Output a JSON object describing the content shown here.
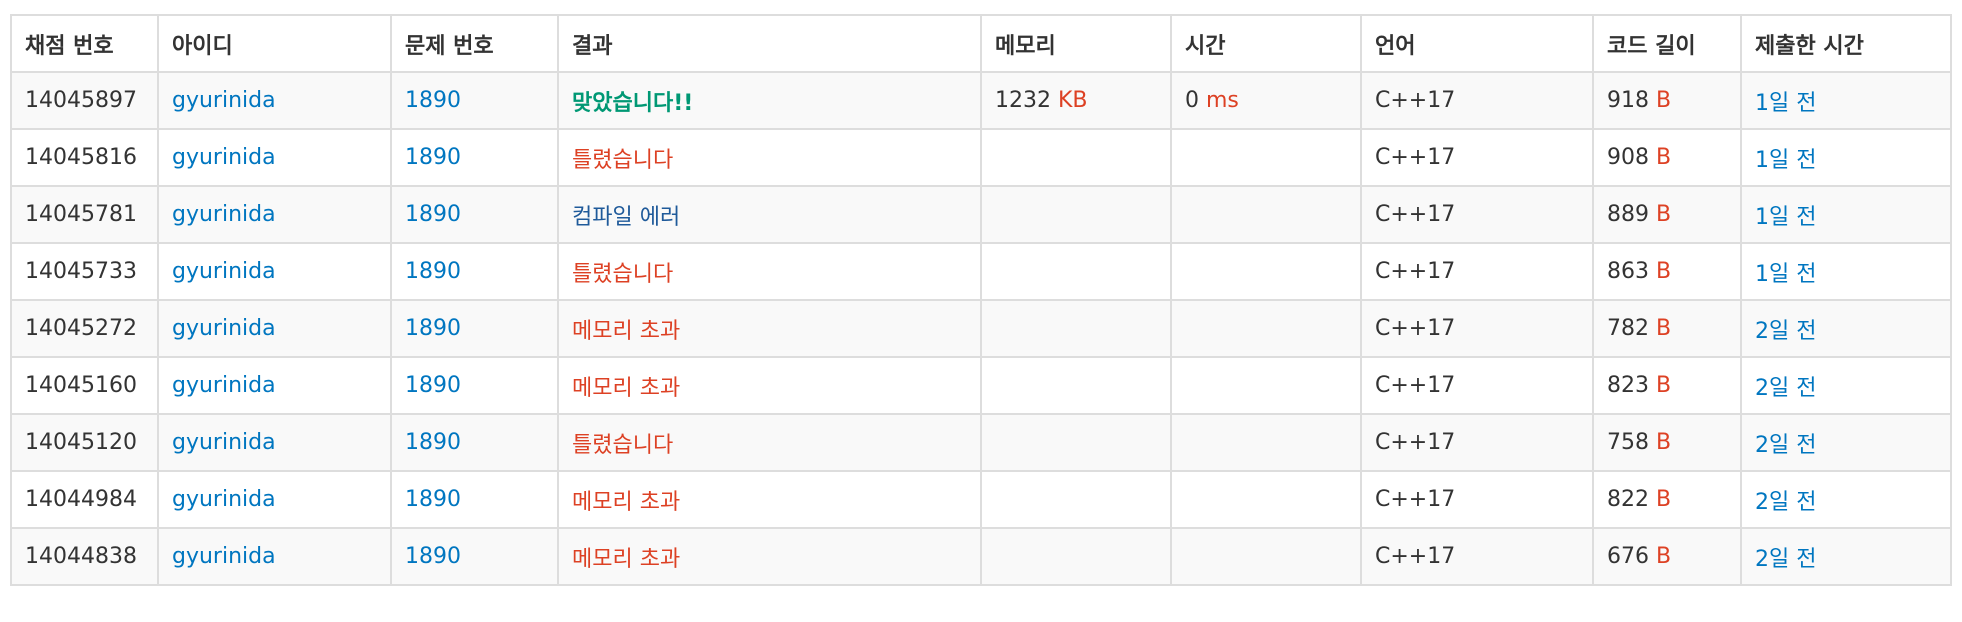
{
  "headers": {
    "submission_id": "채점 번호",
    "user_id": "아이디",
    "problem": "문제 번호",
    "result": "결과",
    "memory": "메모리",
    "time": "시간",
    "language": "언어",
    "code_length": "코드 길이",
    "submitted_at": "제출한 시간"
  },
  "units": {
    "kb": "KB",
    "ms": "ms",
    "bytes": "B"
  },
  "colors": {
    "link": "#0076c0",
    "accepted": "#009874",
    "wrong": "#dd4124",
    "compile_error": "#1f5a9a",
    "border": "#dddddd",
    "stripe": "#f9f9f9"
  },
  "rows": [
    {
      "id": "14045897",
      "user": "gyurinida",
      "problem": "1890",
      "result": "맞았습니다!!",
      "result_type": "accepted",
      "memory": "1232",
      "time": "0",
      "language": "C++17",
      "length": "918",
      "when": "1일 전"
    },
    {
      "id": "14045816",
      "user": "gyurinida",
      "problem": "1890",
      "result": "틀렸습니다",
      "result_type": "wrong",
      "memory": "",
      "time": "",
      "language": "C++17",
      "length": "908",
      "when": "1일 전"
    },
    {
      "id": "14045781",
      "user": "gyurinida",
      "problem": "1890",
      "result": "컴파일 에러",
      "result_type": "compile_error",
      "memory": "",
      "time": "",
      "language": "C++17",
      "length": "889",
      "when": "1일 전"
    },
    {
      "id": "14045733",
      "user": "gyurinida",
      "problem": "1890",
      "result": "틀렸습니다",
      "result_type": "wrong",
      "memory": "",
      "time": "",
      "language": "C++17",
      "length": "863",
      "when": "1일 전"
    },
    {
      "id": "14045272",
      "user": "gyurinida",
      "problem": "1890",
      "result": "메모리 초과",
      "result_type": "wrong",
      "memory": "",
      "time": "",
      "language": "C++17",
      "length": "782",
      "when": "2일 전"
    },
    {
      "id": "14045160",
      "user": "gyurinida",
      "problem": "1890",
      "result": "메모리 초과",
      "result_type": "wrong",
      "memory": "",
      "time": "",
      "language": "C++17",
      "length": "823",
      "when": "2일 전"
    },
    {
      "id": "14045120",
      "user": "gyurinida",
      "problem": "1890",
      "result": "틀렸습니다",
      "result_type": "wrong",
      "memory": "",
      "time": "",
      "language": "C++17",
      "length": "758",
      "when": "2일 전"
    },
    {
      "id": "14044984",
      "user": "gyurinida",
      "problem": "1890",
      "result": "메모리 초과",
      "result_type": "wrong",
      "memory": "",
      "time": "",
      "language": "C++17",
      "length": "822",
      "when": "2일 전"
    },
    {
      "id": "14044838",
      "user": "gyurinida",
      "problem": "1890",
      "result": "메모리 초과",
      "result_type": "wrong",
      "memory": "",
      "time": "",
      "language": "C++17",
      "length": "676",
      "when": "2일 전"
    }
  ]
}
